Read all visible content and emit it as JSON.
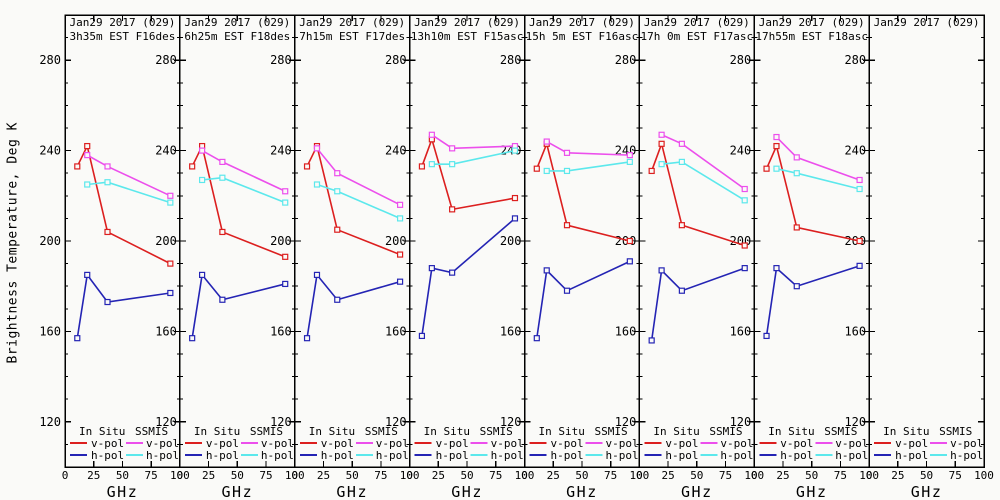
{
  "colors": {
    "red": "#dc1f1f",
    "blue": "#2424b4",
    "magenta": "#ec4fec",
    "cyan": "#5ce8ec",
    "axis": "#000000",
    "background": "#fafaf8"
  },
  "ylabel": "Brightness Temperature, Deg K",
  "xlabel": "GHz",
  "legend": {
    "col1_header": "In Situ",
    "col2_header": "SSMIS",
    "vpol_label": "v-pol",
    "hpol_label": "h-pol"
  },
  "chart_data": {
    "type": "line",
    "xlabel": "GHz",
    "ylabel": "Brightness Temperature, Deg K",
    "xlim": [
      0,
      100
    ],
    "ylim": [
      100,
      300
    ],
    "xticks": [
      0,
      25,
      50,
      75,
      100
    ],
    "yticks": [
      120,
      160,
      200,
      240,
      280
    ],
    "ytick_minor_step": 10,
    "in_situ_freqs_ghz": [
      10.7,
      19.35,
      37.0,
      91.7
    ],
    "ssmis_freqs_ghz": [
      19.35,
      37.0,
      91.7
    ],
    "legend_position": "bottom-inside-each-panel",
    "grid": false,
    "panels": [
      {
        "title1": "Jan29 2017 (029)",
        "title2": "3h35m EST F16des",
        "series": [
          {
            "name": "In Situ v-pol",
            "color_key": "red",
            "x_key": "in_situ",
            "values": [
              233,
              242,
              204,
              190
            ]
          },
          {
            "name": "In Situ h-pol",
            "color_key": "blue",
            "x_key": "in_situ",
            "values": [
              157,
              185,
              173,
              177
            ]
          },
          {
            "name": "SSMIS v-pol",
            "color_key": "magenta",
            "x_key": "ssmis",
            "values": [
              238,
              233,
              220
            ]
          },
          {
            "name": "SSMIS h-pol",
            "color_key": "cyan",
            "x_key": "ssmis",
            "values": [
              225,
              226,
              217
            ]
          }
        ]
      },
      {
        "title1": "Jan29 2017 (029)",
        "title2": "6h25m EST F18des",
        "series": [
          {
            "name": "In Situ v-pol",
            "color_key": "red",
            "x_key": "in_situ",
            "values": [
              233,
              242,
              204,
              193
            ]
          },
          {
            "name": "In Situ h-pol",
            "color_key": "blue",
            "x_key": "in_situ",
            "values": [
              157,
              185,
              174,
              181
            ]
          },
          {
            "name": "SSMIS v-pol",
            "color_key": "magenta",
            "x_key": "ssmis",
            "values": [
              240,
              235,
              222
            ]
          },
          {
            "name": "SSMIS h-pol",
            "color_key": "cyan",
            "x_key": "ssmis",
            "values": [
              227,
              228,
              217
            ]
          }
        ]
      },
      {
        "title1": "Jan29 2017 (029)",
        "title2": "7h15m EST F17des",
        "series": [
          {
            "name": "In Situ v-pol",
            "color_key": "red",
            "x_key": "in_situ",
            "values": [
              233,
              242,
              205,
              194
            ]
          },
          {
            "name": "In Situ h-pol",
            "color_key": "blue",
            "x_key": "in_situ",
            "values": [
              157,
              185,
              174,
              182
            ]
          },
          {
            "name": "SSMIS v-pol",
            "color_key": "magenta",
            "x_key": "ssmis",
            "values": [
              241,
              230,
              216
            ]
          },
          {
            "name": "SSMIS h-pol",
            "color_key": "cyan",
            "x_key": "ssmis",
            "values": [
              225,
              222,
              210
            ]
          }
        ]
      },
      {
        "title1": "Jan29 2017 (029)",
        "title2": "13h10m EST F15asc",
        "series": [
          {
            "name": "In Situ v-pol",
            "color_key": "red",
            "x_key": "in_situ",
            "values": [
              233,
              245,
              214,
              219
            ]
          },
          {
            "name": "In Situ h-pol",
            "color_key": "blue",
            "x_key": "in_situ",
            "values": [
              158,
              188,
              186,
              210
            ]
          },
          {
            "name": "SSMIS v-pol",
            "color_key": "magenta",
            "x_key": "ssmis",
            "values": [
              247,
              241,
              242
            ]
          },
          {
            "name": "SSMIS h-pol",
            "color_key": "cyan",
            "x_key": "ssmis",
            "values": [
              234,
              234,
              240
            ]
          }
        ]
      },
      {
        "title1": "Jan29 2017 (029)",
        "title2": "15h 5m EST F16asc",
        "series": [
          {
            "name": "In Situ v-pol",
            "color_key": "red",
            "x_key": "in_situ",
            "values": [
              232,
              243,
              207,
              200
            ]
          },
          {
            "name": "In Situ h-pol",
            "color_key": "blue",
            "x_key": "in_situ",
            "values": [
              157,
              187,
              178,
              191
            ]
          },
          {
            "name": "SSMIS v-pol",
            "color_key": "magenta",
            "x_key": "ssmis",
            "values": [
              244,
              239,
              238
            ]
          },
          {
            "name": "SSMIS h-pol",
            "color_key": "cyan",
            "x_key": "ssmis",
            "values": [
              231,
              231,
              235
            ]
          }
        ]
      },
      {
        "title1": "Jan29 2017 (029)",
        "title2": "17h 0m EST F17asc",
        "series": [
          {
            "name": "In Situ v-pol",
            "color_key": "red",
            "x_key": "in_situ",
            "values": [
              231,
              243,
              207,
              198
            ]
          },
          {
            "name": "In Situ h-pol",
            "color_key": "blue",
            "x_key": "in_situ",
            "values": [
              156,
              187,
              178,
              188
            ]
          },
          {
            "name": "SSMIS v-pol",
            "color_key": "magenta",
            "x_key": "ssmis",
            "values": [
              247,
              243,
              223
            ]
          },
          {
            "name": "SSMIS h-pol",
            "color_key": "cyan",
            "x_key": "ssmis",
            "values": [
              234,
              235,
              218
            ]
          }
        ]
      },
      {
        "title1": "Jan29 2017 (029)",
        "title2": "17h55m EST F18asc",
        "series": [
          {
            "name": "In Situ v-pol",
            "color_key": "red",
            "x_key": "in_situ",
            "values": [
              232,
              242,
              206,
              200
            ]
          },
          {
            "name": "In Situ h-pol",
            "color_key": "blue",
            "x_key": "in_situ",
            "values": [
              158,
              188,
              180,
              189
            ]
          },
          {
            "name": "SSMIS v-pol",
            "color_key": "magenta",
            "x_key": "ssmis",
            "values": [
              246,
              237,
              227
            ]
          },
          {
            "name": "SSMIS h-pol",
            "color_key": "cyan",
            "x_key": "ssmis",
            "values": [
              232,
              230,
              223
            ]
          }
        ]
      },
      {
        "title1": "Jan29 2017 (029)",
        "title2": "",
        "series": []
      }
    ]
  }
}
